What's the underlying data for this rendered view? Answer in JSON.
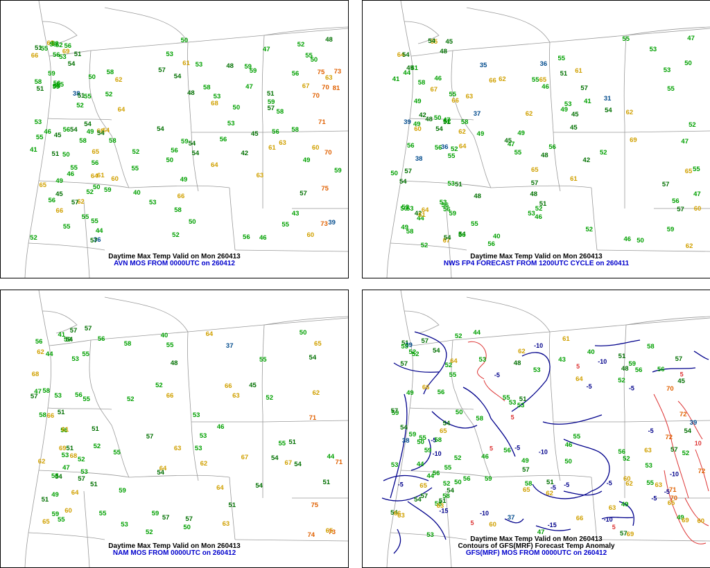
{
  "colors": {
    "cool": "#004a8c",
    "mild": "#00a000",
    "dark": "#007000",
    "warm": "#d0a000",
    "hot": "#e06000",
    "neg_anomaly": "#00008b",
    "pos_anomaly": "#dd3333",
    "caption_blue": "#0000cc"
  },
  "panels": [
    {
      "line1": "Daytime Max Temp Valid on Mon 260413",
      "line2": "AVN MOS FROM 0000UTC on 260412",
      "values": [
        "50",
        "51",
        "54",
        "55",
        "53",
        "56",
        "51",
        "58",
        "59",
        "56",
        "55",
        "36",
        "64",
        "63",
        "70",
        "59",
        "68",
        "52",
        "57",
        "58",
        "56",
        "81",
        "70",
        "66",
        "59",
        "46",
        "51",
        "49",
        "56",
        "54",
        "56",
        "49",
        "48",
        "40",
        "52",
        "55",
        "44",
        "57",
        "42",
        "52",
        "56",
        "49",
        "51",
        "48",
        "50",
        "53",
        "54",
        "49",
        "53",
        "55",
        "63",
        "65",
        "63",
        "67",
        "56",
        "66",
        "41",
        "43",
        "58",
        "55",
        "69",
        "56",
        "53",
        "58",
        "55",
        "53",
        "55",
        "50",
        "56",
        "57",
        "50",
        "38",
        "53",
        "55",
        "50",
        "58",
        "54",
        "56",
        "60",
        "61",
        "64",
        "55",
        "45",
        "39",
        "59",
        "62",
        "65",
        "59",
        "58",
        "57",
        "46",
        "45",
        "63",
        "50",
        "47",
        "45",
        "61",
        "60",
        "62",
        "68",
        "52",
        "56",
        "54",
        "47",
        "59",
        "56",
        "66",
        "64",
        "73",
        "75",
        "71",
        "53",
        "52",
        "54",
        "50",
        "55",
        "52",
        "59",
        "52",
        "53",
        "59",
        "58",
        "55",
        "60",
        "52",
        "54",
        "58",
        "75",
        "70",
        "73",
        "57",
        "51",
        "48",
        "46",
        "50",
        "51",
        "54",
        "58",
        "61",
        "64"
      ]
    },
    {
      "line1": "Daytime Max Temp Valid on Mon 260413",
      "line2": "NWS FP4 FORECAST FROM 1200UTC CYCLE on 260411",
      "values": [
        "48",
        "49",
        "51",
        "52",
        "53",
        "56",
        "55",
        "35",
        "62",
        "65",
        "67",
        "53",
        "62",
        "59",
        "54",
        "64",
        "66",
        "55",
        "50",
        "62",
        "51",
        "53",
        "57",
        "56",
        "47",
        "48",
        "50",
        "56",
        "53",
        "52",
        "41",
        "51",
        "49",
        "46",
        "47",
        "58",
        "59",
        "61",
        "63",
        "69",
        "65",
        "42",
        "36",
        "53",
        "40",
        "54",
        "50",
        "54",
        "57",
        "55",
        "41",
        "49",
        "53",
        "55",
        "46",
        "56",
        "64",
        "57",
        "47",
        "37",
        "39",
        "49",
        "47",
        "41",
        "42",
        "45",
        "44",
        "45",
        "47",
        "52",
        "38",
        "36",
        "31",
        "48",
        "45",
        "56",
        "50",
        "52",
        "54",
        "51",
        "58",
        "46",
        "49",
        "48",
        "53",
        "61",
        "56",
        "62",
        "61",
        "60",
        "54",
        "55",
        "55",
        "45",
        "46",
        "52",
        "54",
        "55",
        "49",
        "48",
        "52",
        "44",
        "65",
        "62",
        "66",
        "57",
        "60",
        "56",
        "58",
        "65",
        "67",
        "64",
        "56",
        "52",
        "57",
        "54",
        "45",
        "50",
        "55",
        "55",
        "42",
        "53"
      ]
    },
    {
      "line1": "Daytime Max Temp Valid on Mon 260413",
      "line2": "NAM MOS FROM 0000UTC on 260412",
      "values": [
        "52",
        "51",
        "55",
        "54",
        "53",
        "51",
        "56",
        "50",
        "55",
        "59",
        "59",
        "53",
        "66",
        "67",
        "63",
        "60",
        "68",
        "64",
        "57",
        "55",
        "59",
        "54",
        "53",
        "51",
        "44",
        "44",
        "58",
        "50",
        "45",
        "53",
        "56",
        "47",
        "58",
        "52",
        "51",
        "57",
        "55",
        "52",
        "54",
        "52",
        "57",
        "53",
        "51",
        "59",
        "53",
        "49",
        "56",
        "55",
        "57",
        "52",
        "58",
        "55",
        "55",
        "37",
        "55",
        "68",
        "57",
        "54",
        "48",
        "53",
        "51",
        "57",
        "54",
        "62",
        "40",
        "41",
        "62",
        "67",
        "63",
        "65",
        "66",
        "62",
        "63",
        "64",
        "65",
        "69",
        "74",
        "75",
        "71",
        "53",
        "47",
        "51",
        "54",
        "57",
        "52",
        "55",
        "61",
        "66",
        "71",
        "73",
        "64",
        "65",
        "62",
        "51",
        "46",
        "58",
        "54",
        "64"
      ]
    },
    {
      "line1": "Daytime Max Temp Valid on Mon 260413",
      "line2": "Contours of GFS(MRF) Forecast Temp Anomaly",
      "line3": "GFS(MRF) MOS FROM 0000UTC on 260412",
      "values": [
        "51",
        "52",
        "53",
        "56",
        "55",
        "58",
        "38",
        "66",
        "63",
        "60",
        "70",
        "57",
        "59",
        "53",
        "60",
        "56",
        "52",
        "51",
        "57",
        "58",
        "55",
        "54",
        "57",
        "50",
        "69",
        "64",
        "59",
        "47",
        "49",
        "48",
        "50",
        "39",
        "52",
        "56",
        "48",
        "53",
        "54",
        "55",
        "56",
        "46",
        "57",
        "54",
        "40",
        "43",
        "54",
        "44",
        "52",
        "56",
        "58",
        "52",
        "55",
        "50",
        "44",
        "37",
        "39",
        "52",
        "59",
        "62",
        "65",
        "63",
        "63",
        "58",
        "64",
        "62",
        "61",
        "66",
        "65",
        "65",
        "63",
        "59",
        "59",
        "65",
        "72",
        "72",
        "49",
        "54",
        "57",
        "53",
        "51",
        "53",
        "52",
        "44",
        "45",
        "58",
        "60",
        "57",
        "54",
        "55",
        "55",
        "57",
        "51",
        "49",
        "57",
        "58",
        "56",
        "54",
        "52",
        "62",
        "49",
        "69",
        "66",
        "71",
        "70",
        "72",
        "46",
        "63",
        "55",
        "52",
        "53",
        "51",
        "50",
        "53",
        "56"
      ],
      "anomaly_labels": [
        "-10",
        "-5",
        "-5",
        "-5",
        "-10",
        "-15",
        "-10",
        "-15",
        "-10",
        "-5",
        "-5",
        "-10",
        "-5",
        "-10",
        "-5",
        "-5",
        "-5",
        "-5",
        "-5",
        "-10",
        "-5",
        "5",
        "5",
        "5",
        "5",
        "10",
        "5",
        "5"
      ]
    }
  ]
}
